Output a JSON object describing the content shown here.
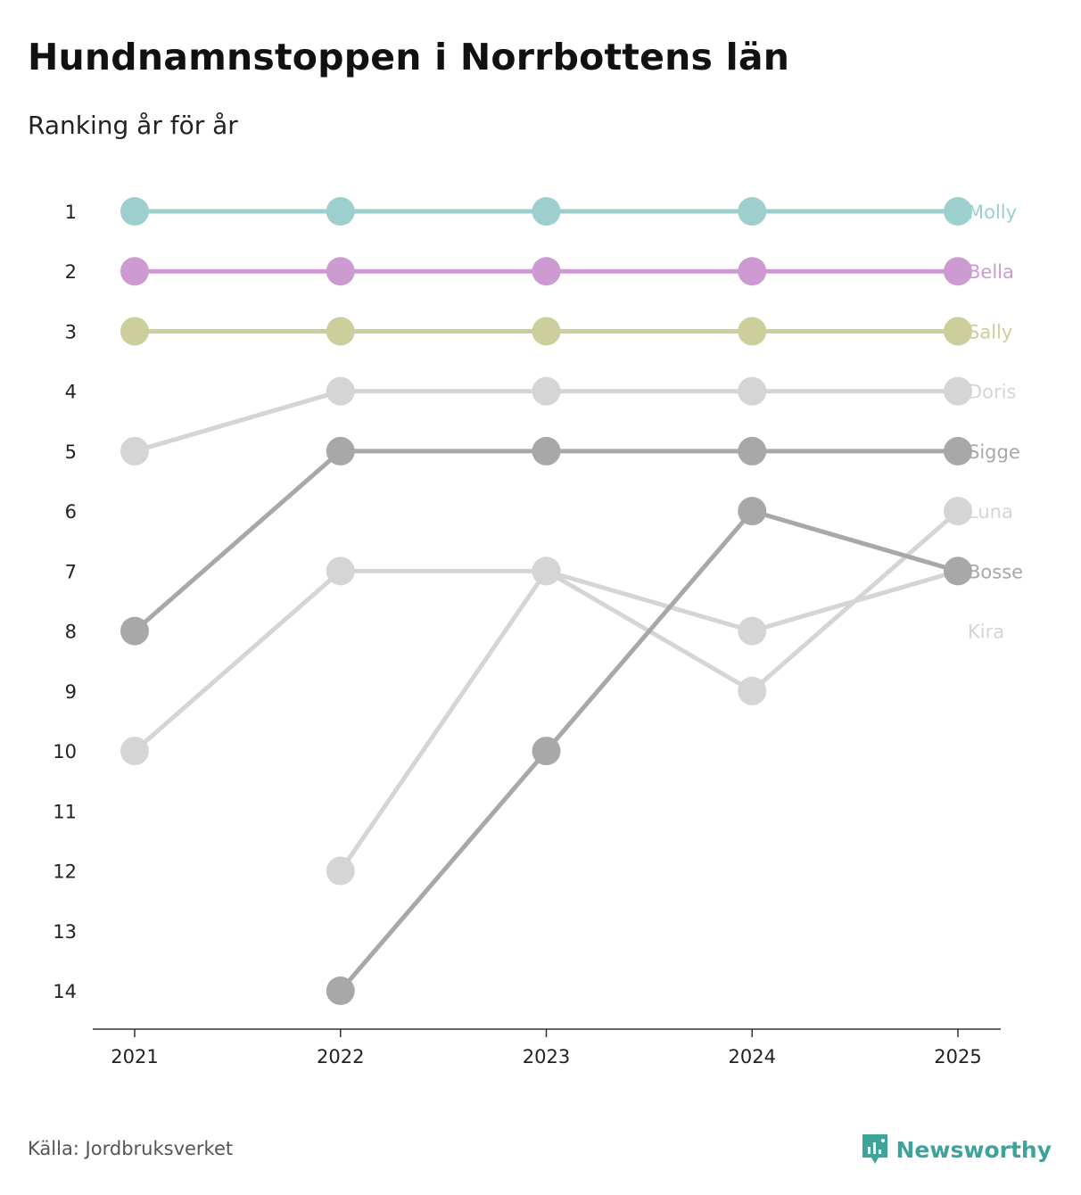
{
  "title": "Hundnamnstoppen i Norrbottens län",
  "subtitle": "Ranking år för år",
  "source": "Källa: Jordbruksverket",
  "brand": "Newsworthy",
  "chart_data": {
    "type": "line",
    "title": "Hundnamnstoppen i Norrbottens län",
    "subtitle": "Ranking år för år",
    "xlabel": "",
    "ylabel": "",
    "categories": [
      "2021",
      "2022",
      "2023",
      "2024",
      "2025"
    ],
    "yticks": [
      1,
      2,
      3,
      4,
      5,
      6,
      7,
      8,
      9,
      10,
      11,
      12,
      13,
      14
    ],
    "ylim": [
      1,
      14
    ],
    "y_inverted": true,
    "series": [
      {
        "name": "Molly",
        "color": "#9ccfce",
        "values": [
          1,
          1,
          1,
          1,
          1
        ],
        "label_rank": 1
      },
      {
        "name": "Bella",
        "color": "#cd9bd1",
        "values": [
          2,
          2,
          2,
          2,
          2
        ],
        "label_rank": 2
      },
      {
        "name": "Sally",
        "color": "#ccce9c",
        "values": [
          3,
          3,
          3,
          3,
          3
        ],
        "label_rank": 3
      },
      {
        "name": "Doris",
        "color": "#d5d5d5",
        "values": [
          5,
          4,
          4,
          4,
          4
        ],
        "label_rank": 4
      },
      {
        "name": "Sigge",
        "color": "#a8a8a8",
        "values": [
          8,
          5,
          5,
          5,
          5
        ],
        "label_rank": 5
      },
      {
        "name": "Luna",
        "color": "#d5d5d5",
        "values": [
          null,
          12,
          7,
          9,
          6
        ],
        "label_rank": 6
      },
      {
        "name": "Bosse",
        "color": "#a8a8a8",
        "values": [
          null,
          14,
          10,
          6,
          7
        ],
        "label_rank": 7
      },
      {
        "name": "Kira",
        "color": "#d5d5d5",
        "values": [
          10,
          7,
          7,
          8,
          7
        ],
        "label_rank": 8
      }
    ]
  }
}
